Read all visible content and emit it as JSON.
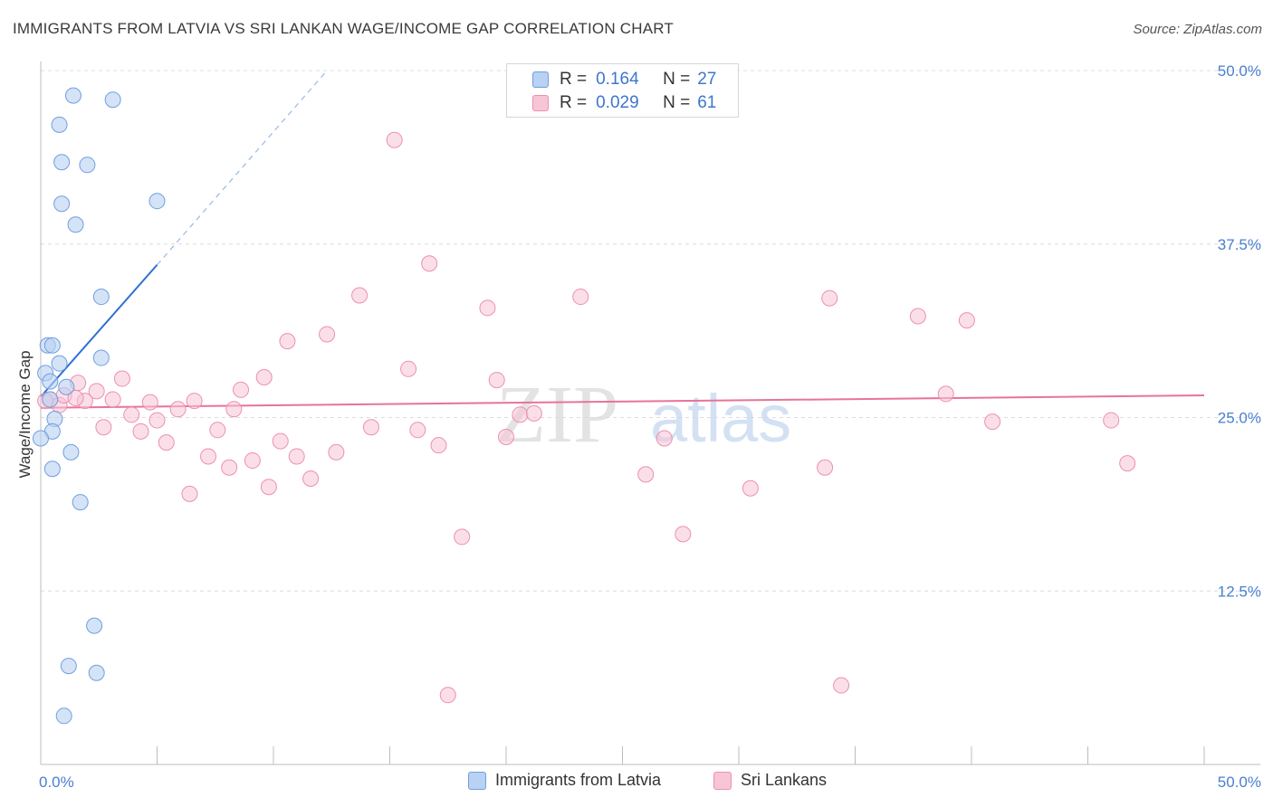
{
  "header": {
    "title": "IMMIGRANTS FROM LATVIA VS SRI LANKAN WAGE/INCOME GAP CORRELATION CHART",
    "source": "Source: ZipAtlas.com"
  },
  "watermark": {
    "zip": "ZIP",
    "atlas": "atlas"
  },
  "colors": {
    "blue_fill": "#b9d1f2",
    "blue_stroke": "#6f9fe0",
    "blue_line": "#2f6fd0",
    "pink_fill": "#f7c5d5",
    "pink_stroke": "#ec90ae",
    "pink_line": "#e8739a",
    "tick_label": "#4a7fd0"
  },
  "legend": {
    "rows": [
      {
        "r_label": "R =",
        "r_value": "0.164",
        "n_label": "N =",
        "n_value": "27"
      },
      {
        "r_label": "R =",
        "r_value": "0.029",
        "n_label": "N =",
        "n_value": "61"
      }
    ]
  },
  "bottom_legend": {
    "latvia": "Immigrants from Latvia",
    "srilanka": "Sri Lankans"
  },
  "chart_data": {
    "type": "scatter",
    "title": "IMMIGRANTS FROM LATVIA VS SRI LANKAN WAGE/INCOME GAP CORRELATION CHART",
    "xlabel": "",
    "ylabel": "Wage/Income Gap",
    "xlim": [
      0,
      50
    ],
    "ylim": [
      0,
      50
    ],
    "x_tick_labels": [
      "0.0%",
      "50.0%"
    ],
    "y_ticks": [
      12.5,
      25.0,
      37.5,
      50.0
    ],
    "y_tick_labels": [
      "12.5%",
      "25.0%",
      "37.5%",
      "50.0%"
    ],
    "grid": true,
    "legend_position": "top-center",
    "series": [
      {
        "name": "Immigrants from Latvia",
        "r": 0.164,
        "n": 27,
        "points": [
          [
            1.4,
            48.2
          ],
          [
            3.1,
            47.9
          ],
          [
            0.8,
            46.1
          ],
          [
            0.9,
            43.4
          ],
          [
            2.0,
            43.2
          ],
          [
            0.9,
            40.4
          ],
          [
            5.0,
            40.6
          ],
          [
            1.5,
            38.9
          ],
          [
            2.6,
            33.7
          ],
          [
            0.3,
            30.2
          ],
          [
            0.5,
            30.2
          ],
          [
            0.8,
            28.9
          ],
          [
            2.6,
            29.3
          ],
          [
            0.2,
            28.2
          ],
          [
            0.4,
            27.6
          ],
          [
            1.1,
            27.2
          ],
          [
            0.6,
            24.9
          ],
          [
            0.5,
            24.0
          ],
          [
            0.0,
            23.5
          ],
          [
            1.3,
            22.5
          ],
          [
            0.5,
            21.3
          ],
          [
            1.7,
            18.9
          ],
          [
            2.3,
            10.0
          ],
          [
            1.2,
            7.1
          ],
          [
            2.4,
            6.6
          ],
          [
            1.0,
            3.5
          ],
          [
            0.4,
            26.3
          ]
        ],
        "trend": {
          "x": [
            0,
            5.0
          ],
          "y": [
            26.5,
            36.0
          ],
          "dashed_to": [
            12.2,
            49.8
          ]
        }
      },
      {
        "name": "Sri Lankans",
        "r": 0.029,
        "n": 61,
        "points": [
          [
            0.4,
            26.3
          ],
          [
            0.8,
            25.9
          ],
          [
            1.0,
            26.6
          ],
          [
            1.6,
            27.5
          ],
          [
            1.9,
            26.2
          ],
          [
            2.4,
            26.9
          ],
          [
            2.7,
            24.3
          ],
          [
            3.1,
            26.3
          ],
          [
            3.5,
            27.8
          ],
          [
            3.9,
            25.2
          ],
          [
            4.3,
            24.0
          ],
          [
            4.7,
            26.1
          ],
          [
            5.0,
            24.8
          ],
          [
            5.4,
            23.2
          ],
          [
            5.9,
            25.6
          ],
          [
            6.4,
            19.5
          ],
          [
            6.6,
            26.2
          ],
          [
            7.2,
            22.2
          ],
          [
            7.6,
            24.1
          ],
          [
            8.1,
            21.4
          ],
          [
            8.3,
            25.6
          ],
          [
            8.6,
            27.0
          ],
          [
            9.1,
            21.9
          ],
          [
            9.6,
            27.9
          ],
          [
            9.8,
            20.0
          ],
          [
            10.3,
            23.3
          ],
          [
            10.6,
            30.5
          ],
          [
            11.0,
            22.2
          ],
          [
            11.6,
            20.6
          ],
          [
            12.3,
            31.0
          ],
          [
            12.7,
            22.5
          ],
          [
            13.7,
            33.8
          ],
          [
            14.2,
            24.3
          ],
          [
            15.2,
            45.0
          ],
          [
            15.8,
            28.5
          ],
          [
            16.2,
            24.1
          ],
          [
            16.7,
            36.1
          ],
          [
            17.1,
            23.0
          ],
          [
            18.1,
            16.4
          ],
          [
            19.2,
            32.9
          ],
          [
            19.6,
            27.7
          ],
          [
            20.0,
            23.6
          ],
          [
            20.6,
            25.2
          ],
          [
            21.2,
            25.3
          ],
          [
            23.2,
            33.7
          ],
          [
            26.0,
            20.9
          ],
          [
            26.8,
            23.5
          ],
          [
            27.6,
            16.6
          ],
          [
            30.5,
            19.9
          ],
          [
            33.7,
            21.4
          ],
          [
            33.9,
            33.6
          ],
          [
            37.7,
            32.3
          ],
          [
            38.9,
            26.7
          ],
          [
            39.8,
            32.0
          ],
          [
            40.9,
            24.7
          ],
          [
            46.0,
            24.8
          ],
          [
            46.7,
            21.7
          ],
          [
            17.5,
            5.0
          ],
          [
            34.4,
            5.7
          ],
          [
            0.2,
            26.2
          ],
          [
            1.5,
            26.4
          ]
        ],
        "trend": {
          "x": [
            0,
            50
          ],
          "y": [
            25.7,
            26.6
          ]
        }
      }
    ]
  }
}
